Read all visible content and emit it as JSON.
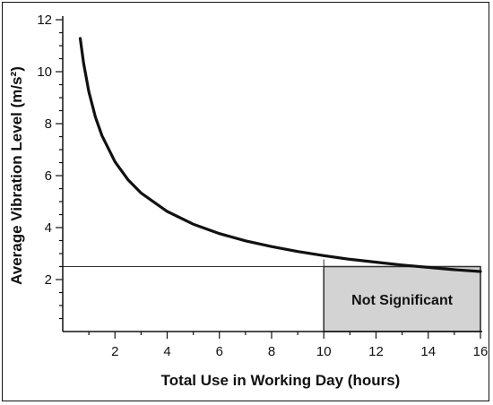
{
  "chart_data": {
    "type": "line",
    "xlabel": "Total Use in Working Day (hours)",
    "ylabel": "Average Vibration Level (m/s²)",
    "xlim": [
      0,
      16
    ],
    "ylim": [
      0,
      12
    ],
    "x_ticks": [
      2,
      4,
      6,
      8,
      10,
      12,
      14,
      16
    ],
    "y_ticks": [
      2,
      4,
      6,
      8,
      10,
      12
    ],
    "grid": false,
    "series": [
      {
        "x": [
          0.67,
          0.8,
          1,
          1.25,
          1.5,
          2,
          2.5,
          3,
          4,
          5,
          6,
          7,
          8,
          9,
          10,
          11,
          12,
          13,
          14,
          15,
          16
        ],
        "y": [
          11.28,
          10.32,
          9.23,
          8.26,
          7.54,
          6.53,
          5.84,
          5.33,
          4.62,
          4.13,
          3.77,
          3.49,
          3.27,
          3.08,
          2.92,
          2.78,
          2.67,
          2.56,
          2.47,
          2.38,
          2.31
        ]
      }
    ],
    "reference_line": {
      "y": 2.5
    },
    "shaded_region": {
      "x": [
        10,
        16
      ],
      "y": [
        0,
        2.5
      ],
      "label": "Not Significant"
    }
  }
}
